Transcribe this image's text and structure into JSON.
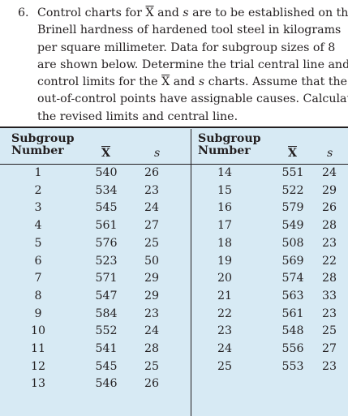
{
  "problem": {
    "number": "6.",
    "lines": [
      [
        "Control charts for ",
        "X",
        " and ",
        "s",
        " are to be established on the"
      ],
      [
        "Brinell hardness of hardened tool steel in kilograms"
      ],
      [
        "per square millimeter. Data for subgroup sizes of 8"
      ],
      [
        "are shown below. Determine the trial central line and"
      ],
      [
        "control limits for the ",
        "X",
        " and ",
        "s",
        " charts. Assume that the"
      ],
      [
        "out-of-control points have assignable causes. Calculate"
      ],
      [
        "the revised limits and central line."
      ]
    ]
  },
  "table": {
    "headers": {
      "subgroup_line1": "Subgroup",
      "subgroup_line2": "Number",
      "xbar": "X",
      "s": "s"
    },
    "left_rows": [
      [
        "1",
        "540",
        "26"
      ],
      [
        "2",
        "534",
        "23"
      ],
      [
        "3",
        "545",
        "24"
      ],
      [
        "4",
        "561",
        "27"
      ],
      [
        "5",
        "576",
        "25"
      ],
      [
        "6",
        "523",
        "50"
      ],
      [
        "7",
        "571",
        "29"
      ],
      [
        "8",
        "547",
        "29"
      ],
      [
        "9",
        "584",
        "23"
      ],
      [
        "10",
        "552",
        "24"
      ],
      [
        "11",
        "541",
        "28"
      ],
      [
        "12",
        "545",
        "25"
      ],
      [
        "13",
        "546",
        "26"
      ]
    ],
    "right_rows": [
      [
        "14",
        "551",
        "24"
      ],
      [
        "15",
        "522",
        "29"
      ],
      [
        "16",
        "579",
        "26"
      ],
      [
        "17",
        "549",
        "28"
      ],
      [
        "18",
        "508",
        "23"
      ],
      [
        "19",
        "569",
        "22"
      ],
      [
        "20",
        "574",
        "28"
      ],
      [
        "21",
        "563",
        "33"
      ],
      [
        "22",
        "561",
        "23"
      ],
      [
        "23",
        "548",
        "25"
      ],
      [
        "24",
        "556",
        "27"
      ],
      [
        "25",
        "553",
        "23"
      ]
    ]
  }
}
